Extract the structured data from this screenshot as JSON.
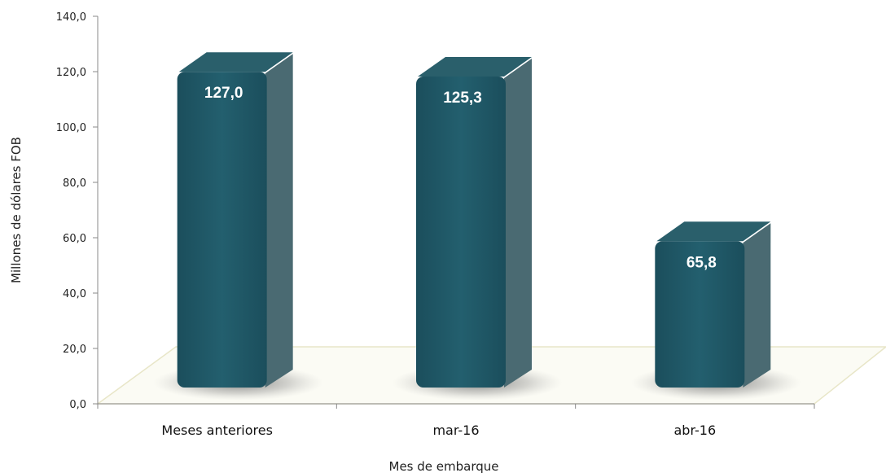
{
  "chart_data": {
    "type": "bar",
    "categories": [
      "Meses anteriores",
      "mar-16",
      "abr-16"
    ],
    "values": [
      127.0,
      125.3,
      65.8
    ],
    "value_labels": [
      "127,0",
      "125,3",
      "65,8"
    ],
    "title": "",
    "xlabel": "Mes de embarque",
    "ylabel": "Millones de dólares FOB",
    "ylim": [
      0,
      140
    ],
    "yticks": [
      "0,0",
      "20,0",
      "40,0",
      "60,0",
      "80,0",
      "100,0",
      "120,0",
      "140,0"
    ],
    "grid": false,
    "legend": "none",
    "style": "3d-column"
  },
  "colors": {
    "bar_front": "#1f5867",
    "bar_side": "#4a6a72",
    "bar_top": "#2a5f6b",
    "floor_edge": "#e8e6c8",
    "axis": "#888888"
  }
}
